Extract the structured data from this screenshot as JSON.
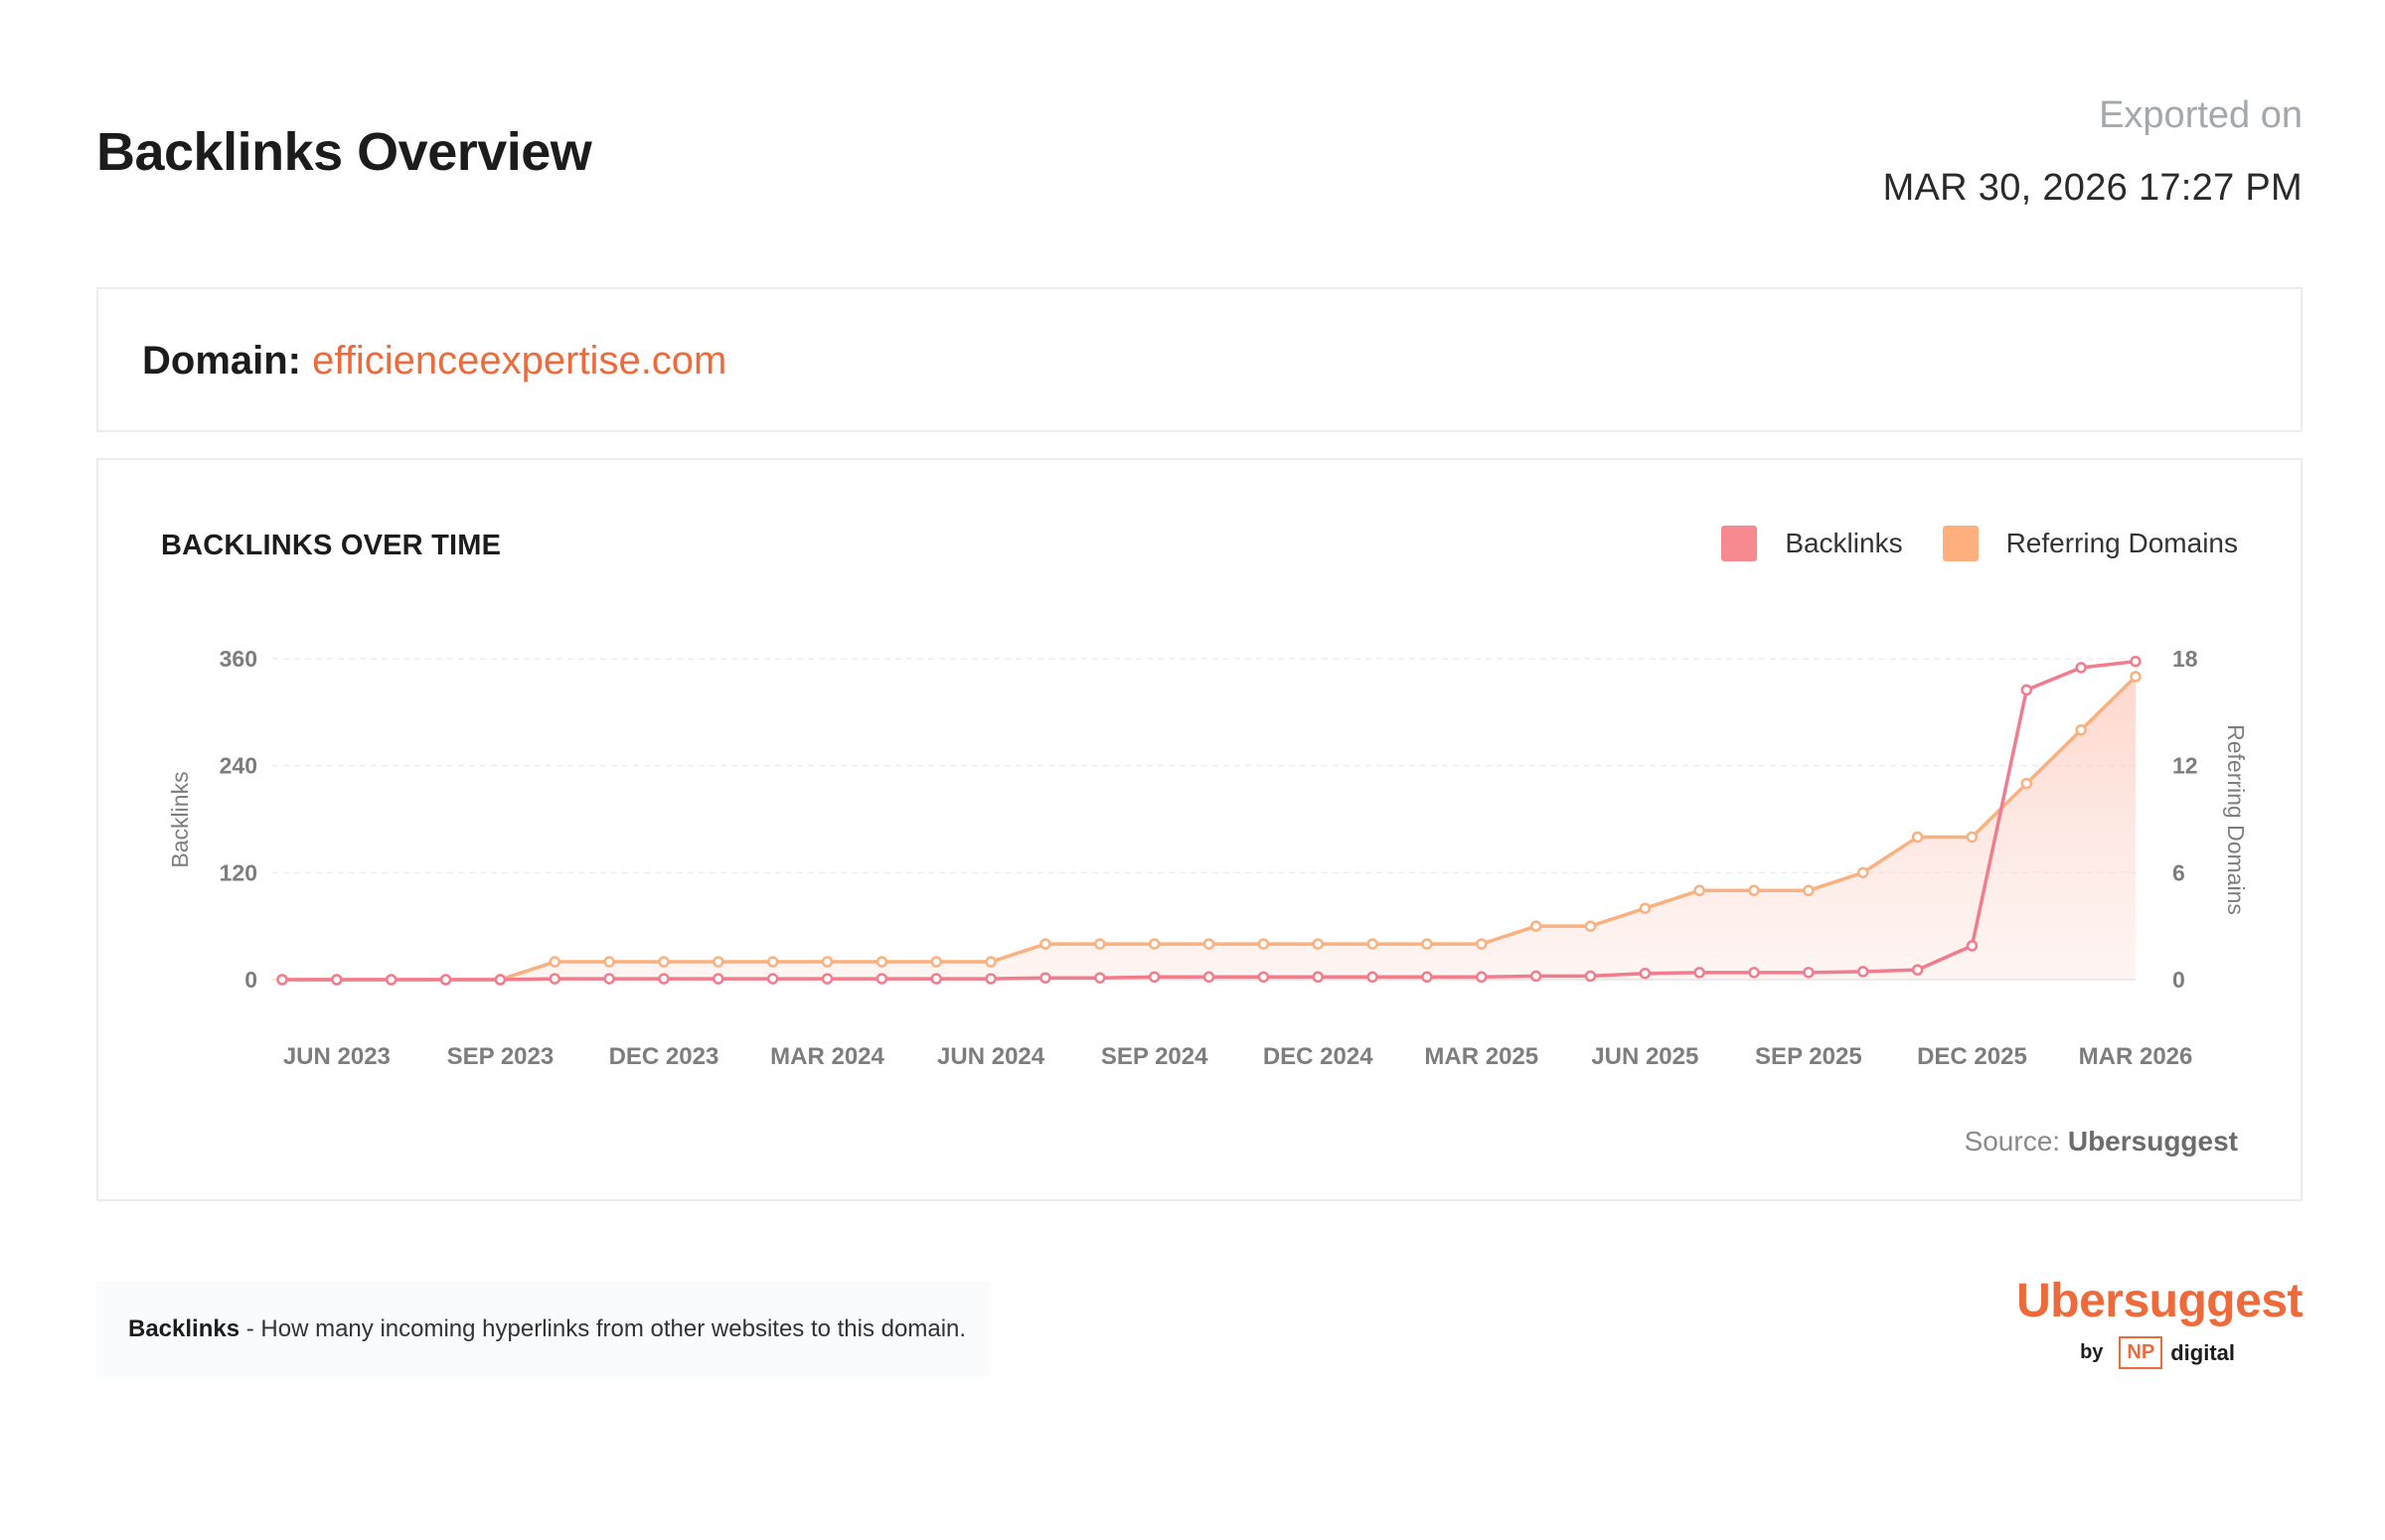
{
  "header": {
    "title": "Backlinks Overview",
    "exported_label": "Exported on",
    "exported_date": "MAR 30, 2026 17:27 PM"
  },
  "domain": {
    "label": "Domain:",
    "value": "efficienceexpertise.com"
  },
  "chart": {
    "title": "BACKLINKS OVER TIME",
    "source_label": "Source:",
    "source_name": "Ubersuggest"
  },
  "note": {
    "term": "Backlinks",
    "text": " - How many incoming hyperlinks from other websites to this domain."
  },
  "brand": {
    "name": "Ubersuggest",
    "by": "by",
    "np": "NP",
    "digital": "digital"
  },
  "colors": {
    "accent": "#ee6a3a",
    "backlinks": "#f27c8c",
    "referring_domains": "#fbb07f"
  },
  "chart_data": {
    "type": "line",
    "title": "BACKLINKS OVER TIME",
    "x": [
      "2023-05",
      "2023-06",
      "2023-07",
      "2023-08",
      "2023-09",
      "2023-10",
      "2023-11",
      "2023-12",
      "2024-01",
      "2024-02",
      "2024-03",
      "2024-04",
      "2024-05",
      "2024-06",
      "2024-07",
      "2024-08",
      "2024-09",
      "2024-10",
      "2024-11",
      "2024-12",
      "2025-01",
      "2025-02",
      "2025-03",
      "2025-04",
      "2025-05",
      "2025-06",
      "2025-07",
      "2025-08",
      "2025-09",
      "2025-10",
      "2025-11",
      "2025-12",
      "2026-01",
      "2026-02",
      "2026-03"
    ],
    "x_tick_labels": [
      "JUN 2023",
      "SEP 2023",
      "DEC 2023",
      "MAR 2024",
      "JUN 2024",
      "SEP 2024",
      "DEC 2024",
      "MAR 2025",
      "JUN 2025",
      "SEP 2025",
      "DEC 2025",
      "MAR 2026"
    ],
    "series": [
      {
        "name": "Backlinks",
        "axis": "left",
        "values": [
          0,
          0,
          0,
          0,
          0,
          1,
          1,
          1,
          1,
          1,
          1,
          1,
          1,
          1,
          2,
          2,
          3,
          3,
          3,
          3,
          3,
          3,
          3,
          4,
          4,
          7,
          8,
          8,
          8,
          9,
          11,
          38,
          325,
          350,
          357
        ]
      },
      {
        "name": "Referring Domains",
        "axis": "right",
        "values": [
          0,
          0,
          0,
          0,
          0,
          1,
          1,
          1,
          1,
          1,
          1,
          1,
          1,
          1,
          2,
          2,
          2,
          2,
          2,
          2,
          2,
          2,
          2,
          3,
          3,
          4,
          5,
          5,
          5,
          6,
          8,
          8,
          11,
          14,
          17
        ]
      }
    ],
    "ylabel": "Backlinks",
    "ylabel_right": "Referring Domains",
    "ylim": [
      0,
      360
    ],
    "ylim_right": [
      0,
      18
    ],
    "yticks": [
      "0",
      "120",
      "240",
      "360"
    ],
    "yticks_right": [
      "0",
      "6",
      "12",
      "18"
    ],
    "grid": true,
    "legend_position": "top-right"
  }
}
